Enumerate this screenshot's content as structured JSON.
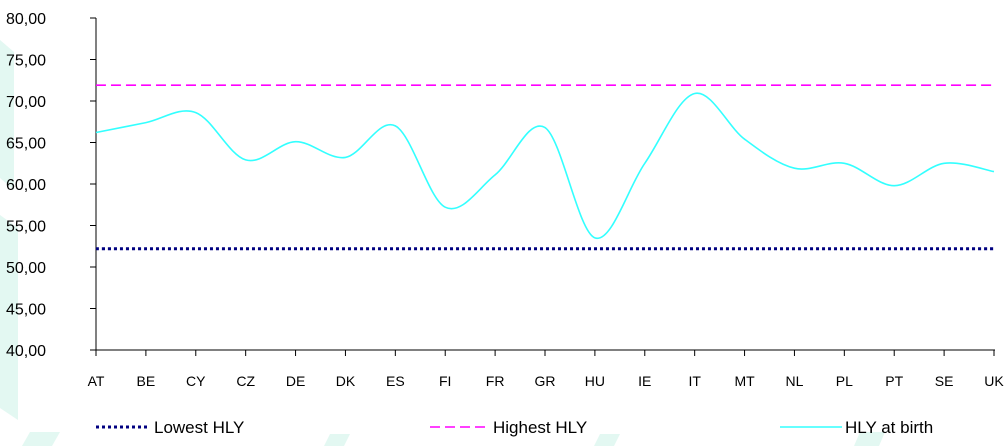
{
  "chart_data": {
    "type": "line",
    "categories": [
      "AT",
      "BE",
      "CY",
      "CZ",
      "DE",
      "DK",
      "ES",
      "FI",
      "FR",
      "GR",
      "HU",
      "IE",
      "IT",
      "MT",
      "NL",
      "PL",
      "PT",
      "SE",
      "UK"
    ],
    "ylim": [
      40,
      80
    ],
    "y_ticks": [
      "40,00",
      "45,00",
      "50,00",
      "55,00",
      "60,00",
      "65,00",
      "70,00",
      "75,00",
      "80,00"
    ],
    "y_tick_values": [
      40,
      45,
      50,
      55,
      60,
      65,
      70,
      75,
      80
    ],
    "grid": false,
    "legend_position": "bottom",
    "series": [
      {
        "name": "Lowest HLY",
        "style": "dotted",
        "color": "#000080",
        "values": [
          52.2,
          52.2,
          52.2,
          52.2,
          52.2,
          52.2,
          52.2,
          52.2,
          52.2,
          52.2,
          52.2,
          52.2,
          52.2,
          52.2,
          52.2,
          52.2,
          52.2,
          52.2,
          52.2
        ]
      },
      {
        "name": "Highest HLY",
        "style": "dashed",
        "color": "#ff00ff",
        "values": [
          71.9,
          71.9,
          71.9,
          71.9,
          71.9,
          71.9,
          71.9,
          71.9,
          71.9,
          71.9,
          71.9,
          71.9,
          71.9,
          71.9,
          71.9,
          71.9,
          71.9,
          71.9,
          71.9
        ]
      },
      {
        "name": "HLY at birth",
        "style": "solid",
        "color": "#33ffff",
        "values": [
          66.2,
          67.4,
          68.6,
          62.9,
          65.1,
          63.2,
          67.0,
          57.2,
          61.1,
          66.8,
          53.5,
          62.5,
          70.9,
          65.4,
          61.9,
          62.5,
          59.8,
          62.5,
          61.5
        ]
      }
    ]
  }
}
